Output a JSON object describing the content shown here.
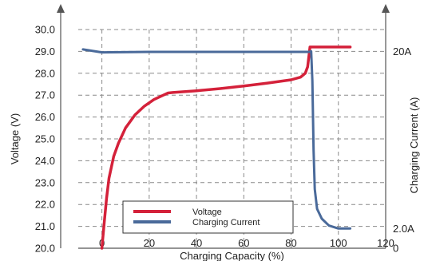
{
  "chart_data": {
    "type": "line",
    "title": "",
    "xlabel": "Charging Capacity (%)",
    "ylabel_left": "Voltage (V)",
    "ylabel_right": "Charging Current (A)",
    "xlim": [
      -10,
      120
    ],
    "ylim_left": [
      20.0,
      30.0
    ],
    "x_ticks": [
      "0",
      "20",
      "40",
      "60",
      "80",
      "100",
      "120"
    ],
    "y_ticks_left": [
      "20.0",
      "21.0",
      "22.0",
      "23.0",
      "24.0",
      "25.0",
      "26.0",
      "27.0",
      "28.0",
      "29.0",
      "30.0"
    ],
    "y_ticks_right": [
      {
        "label": "20A",
        "value": 20
      },
      {
        "label": "2.0A",
        "value": 2
      },
      {
        "label": "0",
        "value": 0
      }
    ],
    "grid": true,
    "legend_position": "bottom-center",
    "series": [
      {
        "name": "Voltage",
        "color": "#d4213a",
        "axis": "left",
        "points": [
          [
            0,
            20.0
          ],
          [
            0.5,
            20.6
          ],
          [
            1,
            21.2
          ],
          [
            2,
            22.3
          ],
          [
            3,
            23.2
          ],
          [
            5,
            24.2
          ],
          [
            7,
            24.8
          ],
          [
            10,
            25.5
          ],
          [
            14,
            26.1
          ],
          [
            18,
            26.5
          ],
          [
            22,
            26.8
          ],
          [
            26,
            27.0
          ],
          [
            28,
            27.1
          ],
          [
            30,
            27.12
          ],
          [
            40,
            27.2
          ],
          [
            50,
            27.3
          ],
          [
            60,
            27.42
          ],
          [
            70,
            27.55
          ],
          [
            80,
            27.7
          ],
          [
            84,
            27.82
          ],
          [
            86,
            28.0
          ],
          [
            87,
            28.3
          ],
          [
            88,
            29.2
          ],
          [
            105,
            29.2
          ]
        ]
      },
      {
        "name": "Charging Current",
        "color": "#4a6a9a",
        "axis": "right",
        "points": [
          [
            -8,
            20.2
          ],
          [
            0,
            19.9
          ],
          [
            20,
            19.95
          ],
          [
            40,
            19.95
          ],
          [
            60,
            19.95
          ],
          [
            80,
            19.95
          ],
          [
            87.5,
            19.95
          ],
          [
            88.5,
            20.0
          ],
          [
            89,
            17
          ],
          [
            89.5,
            10
          ],
          [
            90,
            6
          ],
          [
            91,
            4
          ],
          [
            93,
            3
          ],
          [
            96,
            2.3
          ],
          [
            100,
            2.0
          ],
          [
            105,
            2.0
          ]
        ]
      }
    ]
  }
}
